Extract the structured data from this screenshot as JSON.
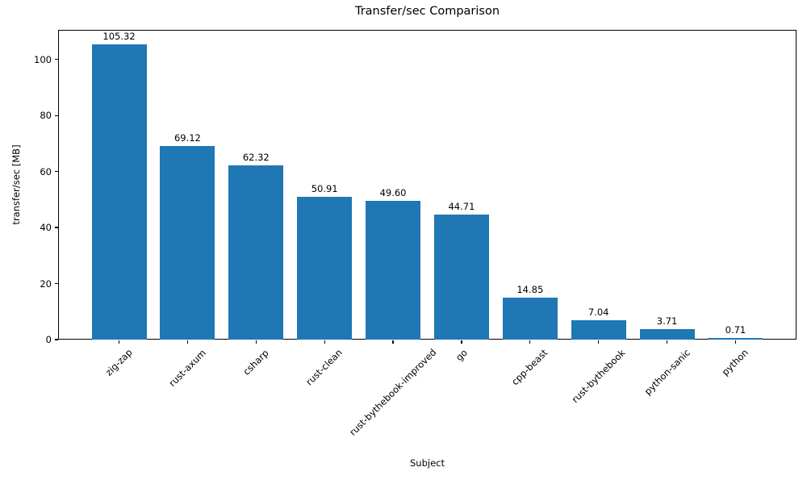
{
  "chart_data": {
    "type": "bar",
    "title": "Transfer/sec Comparison",
    "xlabel": "Subject",
    "ylabel": "transfer/sec [MB]",
    "categories": [
      "zig-zap",
      "rust-axum",
      "csharp",
      "rust-clean",
      "rust-bythebook-improved",
      "go",
      "cpp-beast",
      "rust-bythebook",
      "python-sanic",
      "python"
    ],
    "values": [
      105.32,
      69.12,
      62.32,
      50.91,
      49.6,
      44.71,
      14.85,
      7.04,
      3.71,
      0.71
    ],
    "value_labels": [
      "105.32",
      "69.12",
      "62.32",
      "50.91",
      "49.60",
      "44.71",
      "14.85",
      "7.04",
      "3.71",
      "0.71"
    ],
    "ytick_labels": [
      "0",
      "20",
      "40",
      "60",
      "80",
      "100"
    ],
    "yticks": [
      0,
      20,
      40,
      60,
      80,
      100
    ],
    "ylim": [
      0,
      110.6
    ],
    "xlim": [
      -0.89,
      9.89
    ],
    "bar_width": 0.8,
    "bar_color": "#1f77b4",
    "xtick_rotation_deg": 45,
    "grid": false,
    "legend_position": "none"
  }
}
